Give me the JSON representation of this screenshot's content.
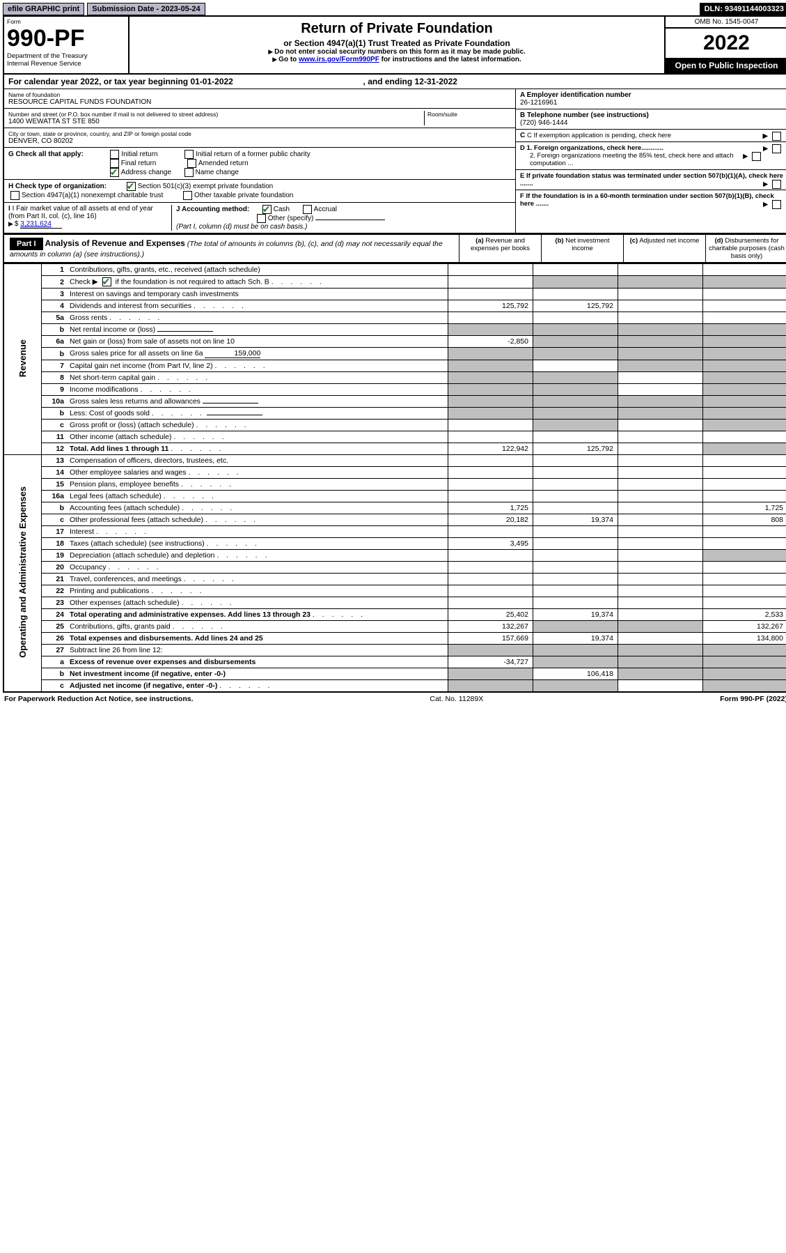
{
  "hdr": {
    "efile": "efile GRAPHIC print",
    "sub_date_label": "Submission Date - ",
    "sub_date": "2023-05-24",
    "dln_label": "DLN: ",
    "dln": "93491144003323"
  },
  "top": {
    "form_label": "Form",
    "form_no": "990-PF",
    "dept1": "Department of the Treasury",
    "dept2": "Internal Revenue Service",
    "title": "Return of Private Foundation",
    "subtitle": "or Section 4947(a)(1) Trust Treated as Private Foundation",
    "note1": "Do not enter social security numbers on this form as it may be made public.",
    "note2_a": "Go to ",
    "note2_link": "www.irs.gov/Form990PF",
    "note2_b": " for instructions and the latest information.",
    "omb": "OMB No. 1545-0047",
    "year": "2022",
    "open": "Open to Public Inspection"
  },
  "cal": {
    "a": "For calendar year 2022, or tax year beginning ",
    "begin": "01-01-2022",
    "b": " , and ending ",
    "end": "12-31-2022"
  },
  "info": {
    "name_label": "Name of foundation",
    "name": "RESOURCE CAPITAL FUNDS FOUNDATION",
    "addr_label": "Number and street (or P.O. box number if mail is not delivered to street address)",
    "addr": "1400 WEWATTA ST STE 850",
    "room_label": "Room/suite",
    "city_label": "City or town, state or province, country, and ZIP or foreign postal code",
    "city": "DENVER, CO  80202",
    "a_label": "A Employer identification number",
    "ein": "26-1216961",
    "b_label": "B Telephone number (see instructions)",
    "phone": "(720) 946-1444",
    "c_label": "C If exemption application is pending, check here",
    "g_label": "G Check all that apply:",
    "g_opts": [
      "Initial return",
      "Final return",
      "Address change",
      "Initial return of a former public charity",
      "Amended return",
      "Name change"
    ],
    "h_label": "H Check type of organization:",
    "h_opts": [
      "Section 501(c)(3) exempt private foundation",
      "Section 4947(a)(1) nonexempt charitable trust",
      "Other taxable private foundation"
    ],
    "i_label": "I Fair market value of all assets at end of year (from Part II, col. (c), line 16)",
    "i_val": "3,231,624",
    "j_label": "J Accounting method:",
    "j_opts": [
      "Cash",
      "Accrual",
      "Other (specify)"
    ],
    "j_note": "(Part I, column (d) must be on cash basis.)",
    "d1": "D 1. Foreign organizations, check here............",
    "d2": "2. Foreign organizations meeting the 85% test, check here and attach computation ...",
    "e": "E  If private foundation status was terminated under section 507(b)(1)(A), check here .......",
    "f": "F  If the foundation is in a 60-month termination under section 507(b)(1)(B), check here .......",
    "dollar": "$"
  },
  "part1": {
    "hdr": "Part I",
    "title": "Analysis of Revenue and Expenses",
    "title_note": " (The total of amounts in columns (b), (c), and (d) may not necessarily equal the amounts in column (a) (see instructions).)",
    "cols": [
      "(a)   Revenue and expenses per books",
      "(b)   Net investment income",
      "(c)   Adjusted net income",
      "(d)   Disbursements for charitable purposes (cash basis only)"
    ],
    "rot_rev": "Revenue",
    "rot_exp": "Operating and Administrative Expenses"
  },
  "rows": [
    {
      "ln": "1",
      "desc": "Contributions, gifts, grants, etc., received (attach schedule)",
      "a": "",
      "b": "",
      "c": "",
      "d": ""
    },
    {
      "ln": "2",
      "desc": "Check ▶ ☑ if the foundation is not required to attach Sch. B",
      "dots": true,
      "a": "",
      "b": "",
      "c": "",
      "d": "",
      "grey_bcd": true
    },
    {
      "ln": "3",
      "desc": "Interest on savings and temporary cash investments",
      "a": "",
      "b": "",
      "c": "",
      "d": ""
    },
    {
      "ln": "4",
      "desc": "Dividends and interest from securities",
      "dots": true,
      "a": "125,792",
      "b": "125,792",
      "c": "",
      "d": ""
    },
    {
      "ln": "5a",
      "desc": "Gross rents",
      "dots": true,
      "a": "",
      "b": "",
      "c": "",
      "d": ""
    },
    {
      "ln": "b",
      "desc": "Net rental income or (loss)",
      "inline": true,
      "a": "",
      "b": "",
      "c": "",
      "d": "",
      "grey_abcd": true
    },
    {
      "ln": "6a",
      "desc": "Net gain or (loss) from sale of assets not on line 10",
      "a": "-2,850",
      "b": "",
      "c": "",
      "d": "",
      "grey_bcd": true
    },
    {
      "ln": "b",
      "desc": "Gross sales price for all assets on line 6a",
      "inline": true,
      "inline_val": "159,000",
      "a": "",
      "b": "",
      "c": "",
      "d": "",
      "grey_abcd": true
    },
    {
      "ln": "7",
      "desc": "Capital gain net income (from Part IV, line 2)",
      "dots": true,
      "a": "",
      "b": "",
      "c": "",
      "d": "",
      "grey_a": true,
      "grey_cd": true
    },
    {
      "ln": "8",
      "desc": "Net short-term capital gain",
      "dots": true,
      "a": "",
      "b": "",
      "c": "",
      "d": "",
      "grey_ab": true,
      "grey_d": true
    },
    {
      "ln": "9",
      "desc": "Income modifications",
      "dots": true,
      "a": "",
      "b": "",
      "c": "",
      "d": "",
      "grey_ab": true,
      "grey_d": true
    },
    {
      "ln": "10a",
      "desc": "Gross sales less returns and allowances",
      "inline": true,
      "a": "",
      "b": "",
      "c": "",
      "d": "",
      "grey_abcd": true
    },
    {
      "ln": "b",
      "desc": "Less: Cost of goods sold",
      "dots": true,
      "inline": true,
      "a": "",
      "b": "",
      "c": "",
      "d": "",
      "grey_abcd": true
    },
    {
      "ln": "c",
      "desc": "Gross profit or (loss) (attach schedule)",
      "dots": true,
      "a": "",
      "b": "",
      "c": "",
      "d": "",
      "grey_b": true,
      "grey_d": true
    },
    {
      "ln": "11",
      "desc": "Other income (attach schedule)",
      "dots": true,
      "a": "",
      "b": "",
      "c": "",
      "d": ""
    },
    {
      "ln": "12",
      "desc": "Total. Add lines 1 through 11",
      "dots": true,
      "bold": true,
      "a": "122,942",
      "b": "125,792",
      "c": "",
      "d": "",
      "grey_d": true
    },
    {
      "ln": "13",
      "desc": "Compensation of officers, directors, trustees, etc.",
      "a": "",
      "b": "",
      "c": "",
      "d": ""
    },
    {
      "ln": "14",
      "desc": "Other employee salaries and wages",
      "dots": true,
      "a": "",
      "b": "",
      "c": "",
      "d": ""
    },
    {
      "ln": "15",
      "desc": "Pension plans, employee benefits",
      "dots": true,
      "a": "",
      "b": "",
      "c": "",
      "d": ""
    },
    {
      "ln": "16a",
      "desc": "Legal fees (attach schedule)",
      "dots": true,
      "a": "",
      "b": "",
      "c": "",
      "d": ""
    },
    {
      "ln": "b",
      "desc": "Accounting fees (attach schedule)",
      "dots": true,
      "a": "1,725",
      "b": "",
      "c": "",
      "d": "1,725"
    },
    {
      "ln": "c",
      "desc": "Other professional fees (attach schedule)",
      "dots": true,
      "a": "20,182",
      "b": "19,374",
      "c": "",
      "d": "808"
    },
    {
      "ln": "17",
      "desc": "Interest",
      "dots": true,
      "a": "",
      "b": "",
      "c": "",
      "d": ""
    },
    {
      "ln": "18",
      "desc": "Taxes (attach schedule) (see instructions)",
      "dots": true,
      "a": "3,495",
      "b": "",
      "c": "",
      "d": ""
    },
    {
      "ln": "19",
      "desc": "Depreciation (attach schedule) and depletion",
      "dots": true,
      "a": "",
      "b": "",
      "c": "",
      "d": "",
      "grey_d": true
    },
    {
      "ln": "20",
      "desc": "Occupancy",
      "dots": true,
      "a": "",
      "b": "",
      "c": "",
      "d": ""
    },
    {
      "ln": "21",
      "desc": "Travel, conferences, and meetings",
      "dots": true,
      "a": "",
      "b": "",
      "c": "",
      "d": ""
    },
    {
      "ln": "22",
      "desc": "Printing and publications",
      "dots": true,
      "a": "",
      "b": "",
      "c": "",
      "d": ""
    },
    {
      "ln": "23",
      "desc": "Other expenses (attach schedule)",
      "dots": true,
      "a": "",
      "b": "",
      "c": "",
      "d": ""
    },
    {
      "ln": "24",
      "desc": "Total operating and administrative expenses. Add lines 13 through 23",
      "dots": true,
      "bold": true,
      "a": "25,402",
      "b": "19,374",
      "c": "",
      "d": "2,533"
    },
    {
      "ln": "25",
      "desc": "Contributions, gifts, grants paid",
      "dots": true,
      "a": "132,267",
      "b": "",
      "c": "",
      "d": "132,267",
      "grey_bc": true
    },
    {
      "ln": "26",
      "desc": "Total expenses and disbursements. Add lines 24 and 25",
      "bold": true,
      "a": "157,669",
      "b": "19,374",
      "c": "",
      "d": "134,800"
    },
    {
      "ln": "27",
      "desc": "Subtract line 26 from line 12:",
      "a": "",
      "b": "",
      "c": "",
      "d": "",
      "grey_abcd": true
    },
    {
      "ln": "a",
      "desc": "Excess of revenue over expenses and disbursements",
      "bold": true,
      "a": "-34,727",
      "b": "",
      "c": "",
      "d": "",
      "grey_bcd": true
    },
    {
      "ln": "b",
      "desc": "Net investment income (if negative, enter -0-)",
      "bold": true,
      "a": "",
      "b": "106,418",
      "c": "",
      "d": "",
      "grey_a": true,
      "grey_cd": true
    },
    {
      "ln": "c",
      "desc": "Adjusted net income (if negative, enter -0-)",
      "dots": true,
      "bold": true,
      "a": "",
      "b": "",
      "c": "",
      "d": "",
      "grey_ab": true,
      "grey_d": true
    }
  ],
  "footer": {
    "left": "For Paperwork Reduction Act Notice, see instructions.",
    "mid": "Cat. No. 11289X",
    "right": "Form 990-PF (2022)"
  }
}
